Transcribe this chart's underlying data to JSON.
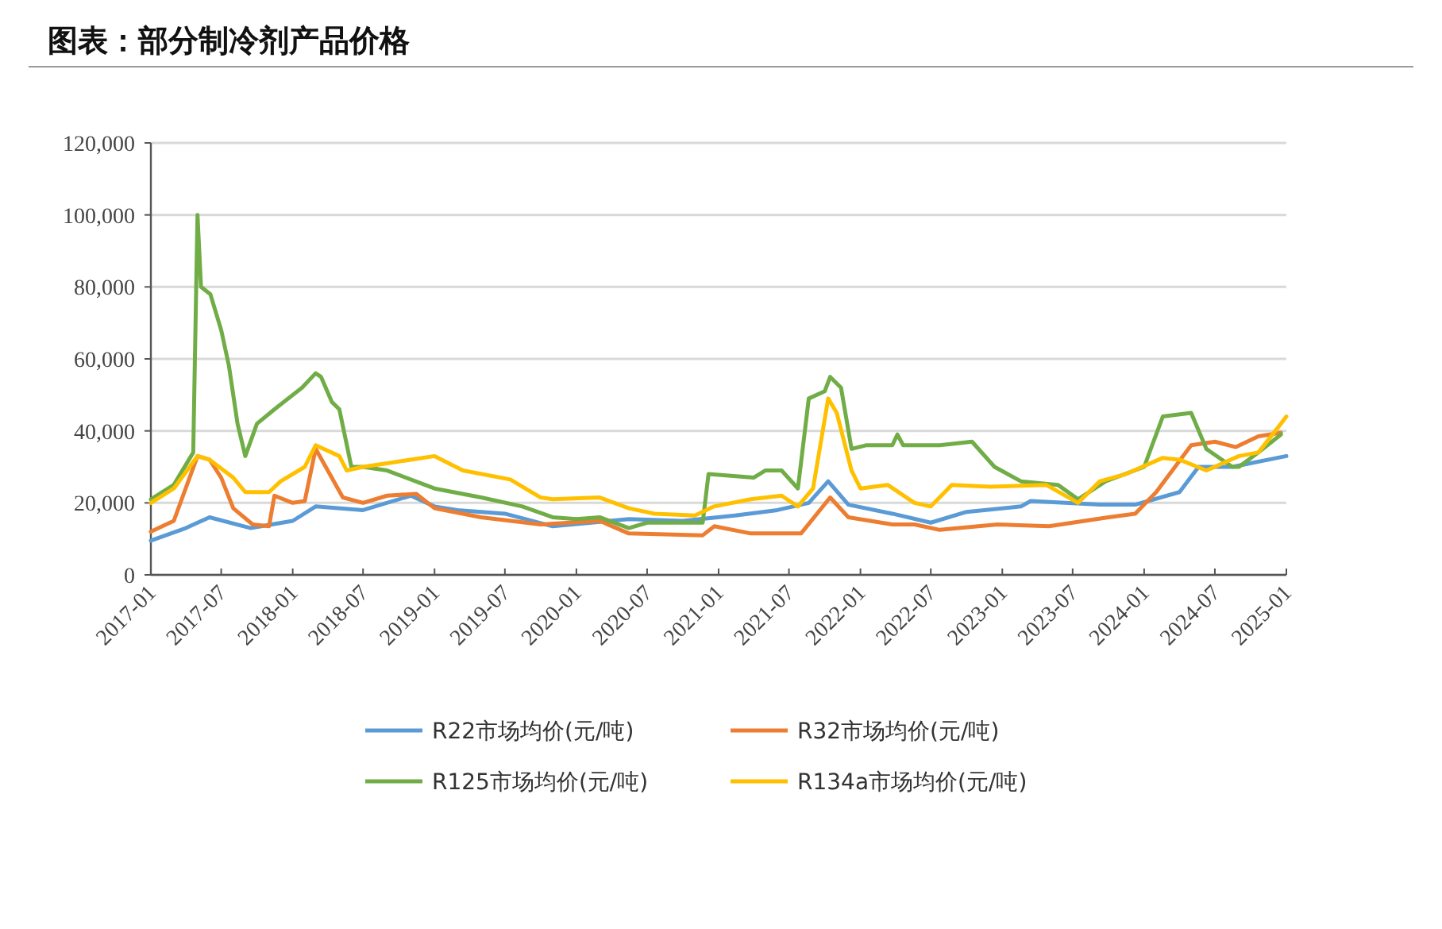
{
  "chart_data": {
    "type": "line",
    "title": "图表：部分制冷剂产品价格",
    "xlim": [
      "2017-01",
      "2025-01"
    ],
    "xticks": [
      "2017-01",
      "2017-07",
      "2018-01",
      "2018-07",
      "2019-01",
      "2019-07",
      "2020-01",
      "2020-07",
      "2021-01",
      "2021-07",
      "2022-01",
      "2022-07",
      "2023-01",
      "2023-07",
      "2024-01",
      "2024-07",
      "2025-01"
    ],
    "ylim": [
      0,
      120000
    ],
    "yticks": [
      {
        "value": 0,
        "label": "0"
      },
      {
        "value": 20000,
        "label": "20,000"
      },
      {
        "value": 40000,
        "label": "40,000"
      },
      {
        "value": 60000,
        "label": "60,000"
      },
      {
        "value": 80000,
        "label": "80,000"
      },
      {
        "value": 100000,
        "label": "100,000"
      },
      {
        "value": 120000,
        "label": "120,000"
      }
    ],
    "grid": "y",
    "legend": "bottom",
    "marker": "none",
    "line_style": "solid",
    "series": [
      {
        "name": "R22市场均价(元/吨)",
        "color": "#5b9bd5",
        "x": [
          "2017-01-01",
          "2017-04-01",
          "2017-06-01",
          "2017-09-15",
          "2018-01-01",
          "2018-03-01",
          "2018-07-01",
          "2018-11-01",
          "2019-01-01",
          "2019-03-01",
          "2019-07-01",
          "2019-11-01",
          "2020-05-15",
          "2020-10-01",
          "2021-02-12",
          "2021-06-01",
          "2021-08-21",
          "2021-10-10",
          "2021-12-01",
          "2022-03-24",
          "2022-07-01",
          "2022-10-01",
          "2023-02-18",
          "2023-03-15",
          "2023-09-09",
          "2023-12-09",
          "2024-04-01",
          "2024-05-20",
          "2024-08-15",
          "2025-01-01"
        ],
        "values": [
          9500,
          13000,
          16000,
          13000,
          15000,
          19000,
          18000,
          22000,
          19000,
          18000,
          17000,
          13500,
          15500,
          15000,
          16500,
          18000,
          20000,
          26000,
          19500,
          17000,
          14500,
          17500,
          19000,
          20500,
          19500,
          19500,
          23000,
          30000,
          30000,
          33000
        ]
      },
      {
        "name": "R32市场均价(元/吨)",
        "color": "#ed7d31",
        "x": [
          "2017-01-01",
          "2017-03-01",
          "2017-05-01",
          "2017-06-01",
          "2017-07-01",
          "2017-08-01",
          "2017-09-20",
          "2017-11-01",
          "2017-11-15",
          "2018-01-01",
          "2018-02-01",
          "2018-03-01",
          "2018-05-10",
          "2018-07-01",
          "2018-09-01",
          "2018-11-15",
          "2019-01-01",
          "2019-05-01",
          "2019-10-01",
          "2020-03-01",
          "2020-05-15",
          "2020-11-21",
          "2020-12-21",
          "2021-03-25",
          "2021-08-01",
          "2021-10-15",
          "2021-12-01",
          "2022-03-24",
          "2022-05-20",
          "2022-07-24",
          "2022-12-20",
          "2023-05-01",
          "2023-10-01",
          "2023-12-09",
          "2024-02-01",
          "2024-05-01",
          "2024-07-01",
          "2024-08-24",
          "2024-10-21",
          "2024-12-18"
        ],
        "values": [
          12000,
          15000,
          33000,
          32000,
          27000,
          18500,
          14000,
          13500,
          22000,
          20000,
          20500,
          35000,
          21500,
          20000,
          22000,
          22500,
          18500,
          16000,
          14000,
          15000,
          11500,
          11000,
          13500,
          11500,
          11500,
          21500,
          16000,
          14000,
          14000,
          12500,
          14000,
          13500,
          16000,
          17000,
          23000,
          36000,
          37000,
          35500,
          38500,
          39500
        ]
      },
      {
        "name": "R125市场均价(元/吨)",
        "color": "#70ad47",
        "x": [
          "2017-01-01",
          "2017-03-01",
          "2017-04-20",
          "2017-05-01",
          "2017-05-10",
          "2017-06-03",
          "2017-07-01",
          "2017-07-21",
          "2017-08-12",
          "2017-09-01",
          "2017-10-01",
          "2017-11-15",
          "2018-01-25",
          "2018-03-01",
          "2018-03-15",
          "2018-04-12",
          "2018-05-01",
          "2018-06-01",
          "2018-07-01",
          "2018-09-01",
          "2019-01-01",
          "2019-05-01",
          "2019-08-15",
          "2019-11-01",
          "2020-01-01",
          "2020-03-01",
          "2020-05-15",
          "2020-07-01",
          "2020-11-21",
          "2020-12-06",
          "2021-04-01",
          "2021-05-01",
          "2021-06-12",
          "2021-07-24",
          "2021-08-21",
          "2021-10-01",
          "2021-10-15",
          "2021-11-12",
          "2021-12-09",
          "2022-01-15",
          "2022-03-24",
          "2022-04-06",
          "2022-04-21",
          "2022-07-24",
          "2022-10-15",
          "2022-12-12",
          "2023-02-18",
          "2023-05-24",
          "2023-07-15",
          "2023-09-24",
          "2024-01-01",
          "2024-02-18",
          "2024-05-01",
          "2024-06-09",
          "2024-08-15",
          "2024-09-01",
          "2024-10-21",
          "2024-12-18"
        ],
        "values": [
          21000,
          25000,
          34000,
          100000,
          80000,
          78000,
          68000,
          58000,
          42000,
          33000,
          42000,
          46000,
          52000,
          56000,
          55000,
          48000,
          46000,
          30000,
          30000,
          29000,
          24000,
          21500,
          19000,
          16000,
          15500,
          16000,
          13000,
          14500,
          14500,
          28000,
          27000,
          29000,
          29000,
          24000,
          49000,
          51000,
          55000,
          52000,
          35000,
          36000,
          36000,
          39000,
          36000,
          36000,
          37000,
          30000,
          26000,
          25000,
          21000,
          26000,
          30000,
          44000,
          45000,
          35000,
          30000,
          30000,
          34000,
          39000
        ]
      },
      {
        "name": "R134a市场均价(元/吨)",
        "color": "#ffc000",
        "x": [
          "2017-01-01",
          "2017-03-01",
          "2017-05-01",
          "2017-06-01",
          "2017-08-01",
          "2017-09-01",
          "2017-11-01",
          "2017-12-01",
          "2018-02-01",
          "2018-03-01",
          "2018-05-01",
          "2018-05-20",
          "2018-07-01",
          "2018-09-01",
          "2019-01-01",
          "2019-03-15",
          "2019-07-15",
          "2019-10-01",
          "2019-11-01",
          "2020-03-01",
          "2020-05-15",
          "2020-07-20",
          "2020-11-01",
          "2020-12-20",
          "2021-03-25",
          "2021-06-12",
          "2021-07-24",
          "2021-09-01",
          "2021-10-10",
          "2021-11-01",
          "2021-12-09",
          "2022-01-01",
          "2022-03-12",
          "2022-05-20",
          "2022-07-01",
          "2022-08-24",
          "2022-12-01",
          "2023-04-24",
          "2023-07-15",
          "2023-09-09",
          "2023-11-15",
          "2024-02-18",
          "2024-04-01",
          "2024-06-09",
          "2024-09-01",
          "2024-10-21",
          "2024-12-18",
          "2025-01-01"
        ],
        "values": [
          20000,
          24000,
          33000,
          32000,
          27000,
          23000,
          23000,
          26000,
          30000,
          36000,
          33000,
          29000,
          30000,
          31000,
          33000,
          29000,
          26500,
          21500,
          21000,
          21500,
          18500,
          17000,
          16500,
          19000,
          21000,
          22000,
          19000,
          24000,
          49000,
          45000,
          29000,
          24000,
          25000,
          20000,
          19000,
          25000,
          24500,
          25000,
          20000,
          26000,
          28000,
          32500,
          32000,
          29000,
          33000,
          34000,
          42000,
          44000
        ]
      }
    ]
  }
}
